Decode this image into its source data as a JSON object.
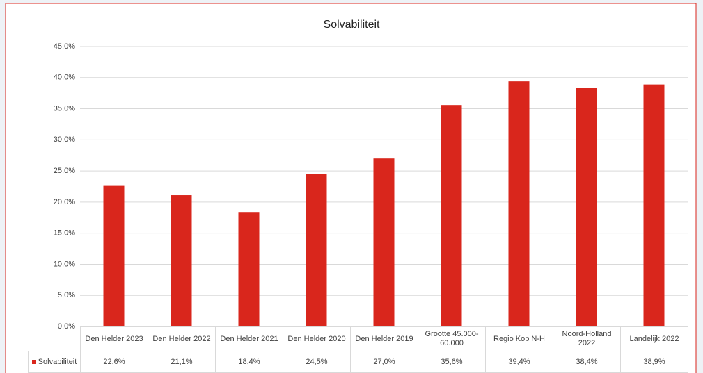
{
  "chart_data": {
    "type": "bar",
    "title": "Solvabiliteit",
    "categories": [
      "Den Helder 2023",
      "Den Helder 2022",
      "Den Helder 2021",
      "Den Helder 2020",
      "Den Helder 2019",
      "Grootte 45.000-60.000",
      "Regio Kop N-H",
      "Noord-Holland 2022",
      "Landelijk 2022"
    ],
    "series": [
      {
        "name": "Solvabiliteit",
        "color": "#d9261c",
        "values": [
          22.6,
          21.1,
          18.4,
          24.5,
          27.0,
          35.6,
          39.4,
          38.4,
          38.9
        ],
        "value_labels": [
          "22,6%",
          "21,1%",
          "18,4%",
          "24,5%",
          "27,0%",
          "35,6%",
          "39,4%",
          "38,4%",
          "38,9%"
        ]
      }
    ],
    "ylim": [
      0,
      45
    ],
    "yticks": [
      {
        "value": 0,
        "label": "0,0%"
      },
      {
        "value": 5,
        "label": "5,0%"
      },
      {
        "value": 10,
        "label": "10,0%"
      },
      {
        "value": 15,
        "label": "15,0%"
      },
      {
        "value": 20,
        "label": "20,0%"
      },
      {
        "value": 25,
        "label": "25,0%"
      },
      {
        "value": 30,
        "label": "30,0%"
      },
      {
        "value": 35,
        "label": "35,0%"
      },
      {
        "value": 40,
        "label": "40,0%"
      },
      {
        "value": 45,
        "label": "45,0%"
      }
    ],
    "grid": true
  }
}
